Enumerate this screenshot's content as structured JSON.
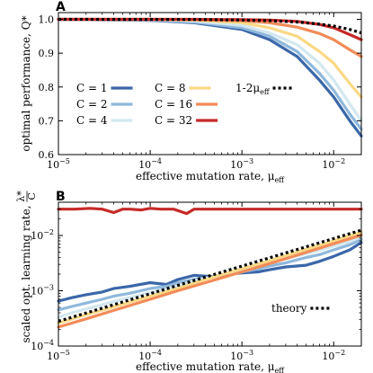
{
  "chart_data": [
    {
      "panel": "A",
      "type": "line",
      "xlabel": "effective mutation rate, μ",
      "xlabel_sub": "eff",
      "ylabel": "optimal performance, Q*",
      "xscale": "log",
      "xlim": [
        1e-05,
        0.02
      ],
      "ylim": [
        0.6,
        1.02
      ],
      "xticks": [
        1e-05,
        0.0001,
        0.001,
        0.01
      ],
      "xtick_labels": [
        {
          "base": "10",
          "exp": "−5"
        },
        {
          "base": "10",
          "exp": "−4"
        },
        {
          "base": "10",
          "exp": "−3"
        },
        {
          "base": "10",
          "exp": "−2"
        }
      ],
      "yticks": [
        0.6,
        0.7,
        0.8,
        0.9,
        1.0
      ],
      "ytick_labels": [
        "0.6",
        "0.7",
        "0.8",
        "0.9",
        "1.0"
      ],
      "legend_location": "lower-left",
      "series": [
        {
          "name": "C = 1",
          "color": "#3b67a8",
          "style": "solid",
          "x": [
            1e-05,
            0.0001,
            0.0003,
            0.001,
            0.002,
            0.004,
            0.007,
            0.01,
            0.015,
            0.02
          ],
          "y": [
            1.0,
            0.997,
            0.99,
            0.97,
            0.94,
            0.89,
            0.82,
            0.77,
            0.7,
            0.655
          ]
        },
        {
          "name": "C = 2",
          "color": "#8fb8dc",
          "style": "solid",
          "x": [
            1e-05,
            0.0001,
            0.0003,
            0.001,
            0.002,
            0.004,
            0.007,
            0.01,
            0.015,
            0.02
          ],
          "y": [
            1.0,
            0.998,
            0.992,
            0.975,
            0.95,
            0.905,
            0.84,
            0.79,
            0.72,
            0.675
          ]
        },
        {
          "name": "C = 4",
          "color": "#d3e7ef",
          "style": "solid",
          "x": [
            1e-05,
            0.0001,
            0.0003,
            0.001,
            0.002,
            0.004,
            0.007,
            0.01,
            0.015,
            0.02
          ],
          "y": [
            1.0,
            0.999,
            0.995,
            0.982,
            0.96,
            0.925,
            0.87,
            0.82,
            0.75,
            0.7
          ]
        },
        {
          "name": "C = 8",
          "color": "#fbd884",
          "style": "solid",
          "x": [
            1e-05,
            0.0001,
            0.0003,
            0.001,
            0.002,
            0.004,
            0.007,
            0.01,
            0.015,
            0.02
          ],
          "y": [
            1.0,
            1.0,
            0.998,
            0.99,
            0.975,
            0.95,
            0.905,
            0.87,
            0.81,
            0.77
          ]
        },
        {
          "name": "C = 16",
          "color": "#f28b58",
          "style": "solid",
          "x": [
            1e-05,
            0.0001,
            0.0003,
            0.001,
            0.002,
            0.004,
            0.007,
            0.01,
            0.015,
            0.02
          ],
          "y": [
            1.0,
            1.0,
            0.999,
            0.996,
            0.99,
            0.977,
            0.958,
            0.94,
            0.91,
            0.89
          ]
        },
        {
          "name": "C = 32",
          "color": "#c52a28",
          "style": "solid",
          "x": [
            1e-05,
            0.0001,
            0.0003,
            0.001,
            0.002,
            0.004,
            0.007,
            0.01,
            0.015,
            0.02
          ],
          "y": [
            1.0,
            1.0,
            1.0,
            0.999,
            0.998,
            0.994,
            0.985,
            0.975,
            0.955,
            0.94
          ]
        },
        {
          "name": "1-2μ",
          "name_sub": "eff",
          "color": "#000000",
          "style": "dotted",
          "x": [
            1e-05,
            0.0001,
            0.0003,
            0.001,
            0.002,
            0.004,
            0.007,
            0.01,
            0.015,
            0.02
          ],
          "y": [
            0.99998,
            0.9998,
            0.9994,
            0.998,
            0.996,
            0.992,
            0.986,
            0.98,
            0.97,
            0.96
          ]
        }
      ]
    },
    {
      "panel": "B",
      "type": "line",
      "xlabel": "effective mutation rate, μ",
      "xlabel_sub": "eff",
      "ylabel": "scaled opt. learning rate,",
      "ylabel_frac_num": "λ*",
      "ylabel_frac_den": "C",
      "xscale": "log",
      "yscale": "log",
      "xlim": [
        1e-05,
        0.02
      ],
      "ylim": [
        0.0001,
        0.04
      ],
      "xticks": [
        1e-05,
        0.0001,
        0.001,
        0.01
      ],
      "xtick_labels": [
        {
          "base": "10",
          "exp": "−5"
        },
        {
          "base": "10",
          "exp": "−4"
        },
        {
          "base": "10",
          "exp": "−3"
        },
        {
          "base": "10",
          "exp": "−2"
        }
      ],
      "yticks": [
        0.0001,
        0.001,
        0.01
      ],
      "ytick_labels": [
        {
          "base": "10",
          "exp": "−4"
        },
        {
          "base": "10",
          "exp": "−3"
        },
        {
          "base": "10",
          "exp": "−2"
        }
      ],
      "legend_location": "lower-right",
      "series": [
        {
          "name": "C = 1",
          "color": "#3b67a8",
          "style": "solid",
          "x": [
            1e-05,
            1.4e-05,
            2e-05,
            3e-05,
            4e-05,
            6e-05,
            0.0001,
            0.00015,
            0.0002,
            0.0003,
            0.0005,
            0.0007,
            0.001,
            0.0015,
            0.002,
            0.003,
            0.005,
            0.007,
            0.01,
            0.015,
            0.02
          ],
          "y": [
            0.00065,
            0.00075,
            0.00085,
            0.00095,
            0.0011,
            0.0012,
            0.0014,
            0.0013,
            0.0016,
            0.0019,
            0.0018,
            0.002,
            0.0021,
            0.0022,
            0.0024,
            0.0027,
            0.0029,
            0.0034,
            0.0042,
            0.0055,
            0.0075
          ]
        },
        {
          "name": "C = 2",
          "color": "#8fb8dc",
          "style": "solid",
          "x": [
            1e-05,
            1.4e-05,
            2e-05,
            3e-05,
            4e-05,
            6e-05,
            0.0001,
            0.00015,
            0.0002,
            0.0003,
            0.0005,
            0.0007,
            0.001,
            0.0015,
            0.002,
            0.003,
            0.005,
            0.007,
            0.01,
            0.015,
            0.02
          ],
          "y": [
            0.00045,
            0.00052,
            0.0006,
            0.0007,
            0.0008,
            0.0009,
            0.0011,
            0.0012,
            0.0014,
            0.0016,
            0.0018,
            0.0021,
            0.0022,
            0.0025,
            0.0028,
            0.0032,
            0.004,
            0.0045,
            0.0055,
            0.0068,
            0.0085
          ]
        },
        {
          "name": "C = 4",
          "color": "#d3e7ef",
          "style": "solid",
          "x": [
            1e-05,
            1.4e-05,
            2e-05,
            3e-05,
            4e-05,
            6e-05,
            0.0001,
            0.00015,
            0.0002,
            0.0003,
            0.0005,
            0.0007,
            0.001,
            0.0015,
            0.002,
            0.003,
            0.005,
            0.007,
            0.01,
            0.015,
            0.02
          ],
          "y": [
            0.00033,
            0.0004,
            0.00047,
            0.00056,
            0.00064,
            0.00076,
            0.00092,
            0.00108,
            0.00125,
            0.0015,
            0.0018,
            0.0021,
            0.0024,
            0.0028,
            0.0033,
            0.0038,
            0.0047,
            0.0054,
            0.0064,
            0.0078,
            0.0095
          ]
        },
        {
          "name": "C = 8",
          "color": "#fbd884",
          "style": "solid",
          "x": [
            1e-05,
            2e-05,
            4e-05,
            0.0001,
            0.0002,
            0.0004,
            0.001,
            0.002,
            0.004,
            0.01,
            0.02
          ],
          "y": [
            0.00026,
            0.00037,
            0.00051,
            0.0008,
            0.0011,
            0.0016,
            0.0025,
            0.0035,
            0.005,
            0.008,
            0.0115
          ]
        },
        {
          "name": "C = 16",
          "color": "#f28b58",
          "style": "solid",
          "x": [
            1e-05,
            2e-05,
            4e-05,
            0.0001,
            0.0002,
            0.0004,
            0.001,
            0.002,
            0.004,
            0.01,
            0.02
          ],
          "y": [
            0.00022,
            0.00031,
            0.00044,
            0.0007,
            0.001,
            0.0014,
            0.0022,
            0.0031,
            0.0044,
            0.0071,
            0.0102
          ]
        },
        {
          "name": "C = 32",
          "color": "#c52a28",
          "style": "solid",
          "x": [
            1e-05,
            1.5e-05,
            2.2e-05,
            3e-05,
            4e-05,
            5e-05,
            6e-05,
            8e-05,
            0.0001,
            0.00013,
            0.00018,
            0.00025,
            0.0003,
            0.0004,
            0.0006,
            0.0009,
            0.0013,
            0.002,
            0.003,
            0.005,
            0.008,
            0.012,
            0.02
          ],
          "y": [
            0.03,
            0.03,
            0.031,
            0.03,
            0.026,
            0.03,
            0.03,
            0.029,
            0.031,
            0.03,
            0.03,
            0.025,
            0.03,
            0.03,
            0.03,
            0.03,
            0.03,
            0.03,
            0.03,
            0.03,
            0.03,
            0.03,
            0.03
          ]
        },
        {
          "name": "theory",
          "color": "#000000",
          "style": "dotted",
          "x": [
            1e-05,
            0.02
          ],
          "y": [
            0.00028,
            0.0125
          ]
        }
      ]
    }
  ]
}
